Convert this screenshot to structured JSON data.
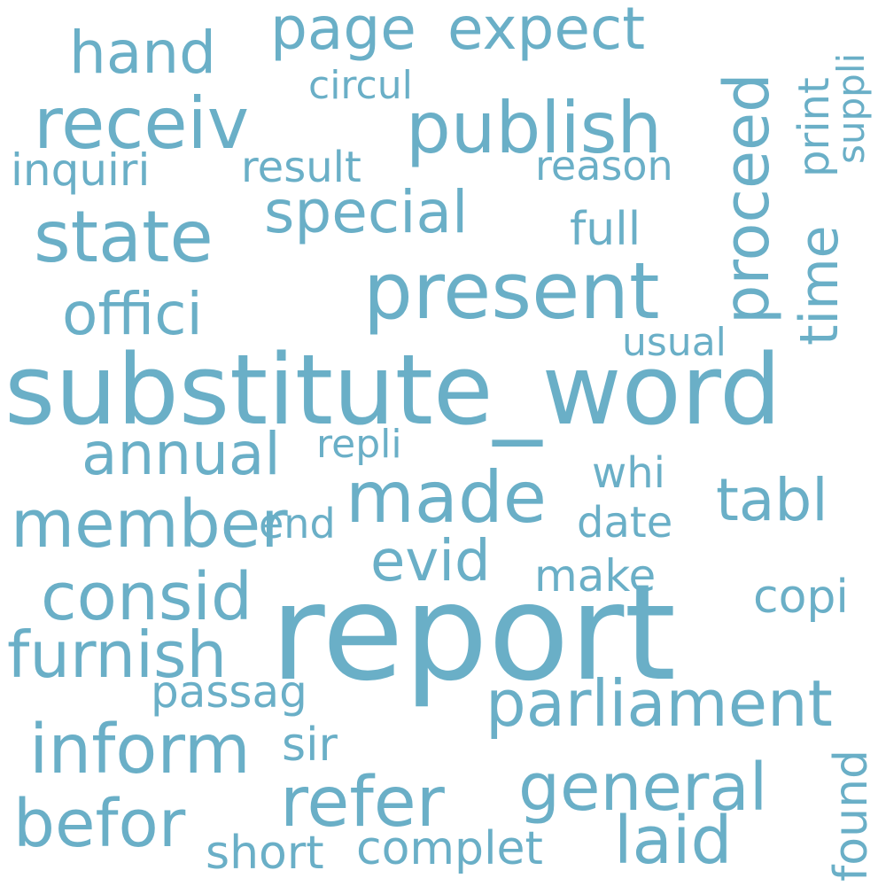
{
  "cloud": {
    "color": "#6aafc7",
    "words": [
      "report",
      "substitute_word",
      "present",
      "publish",
      "receiv",
      "state",
      "made",
      "parliament",
      "inform",
      "member",
      "consid",
      "furnish",
      "refer",
      "general",
      "befor",
      "laid",
      "page",
      "expect",
      "hand",
      "special",
      "annual",
      "offici",
      "proceed",
      "time",
      "tabl",
      "evid",
      "circul",
      "inquiri",
      "result",
      "reason",
      "full",
      "print",
      "suppli",
      "usual",
      "repli",
      "whi",
      "end",
      "date",
      "make",
      "copi",
      "passag",
      "sir",
      "short",
      "complet",
      "found"
    ]
  }
}
